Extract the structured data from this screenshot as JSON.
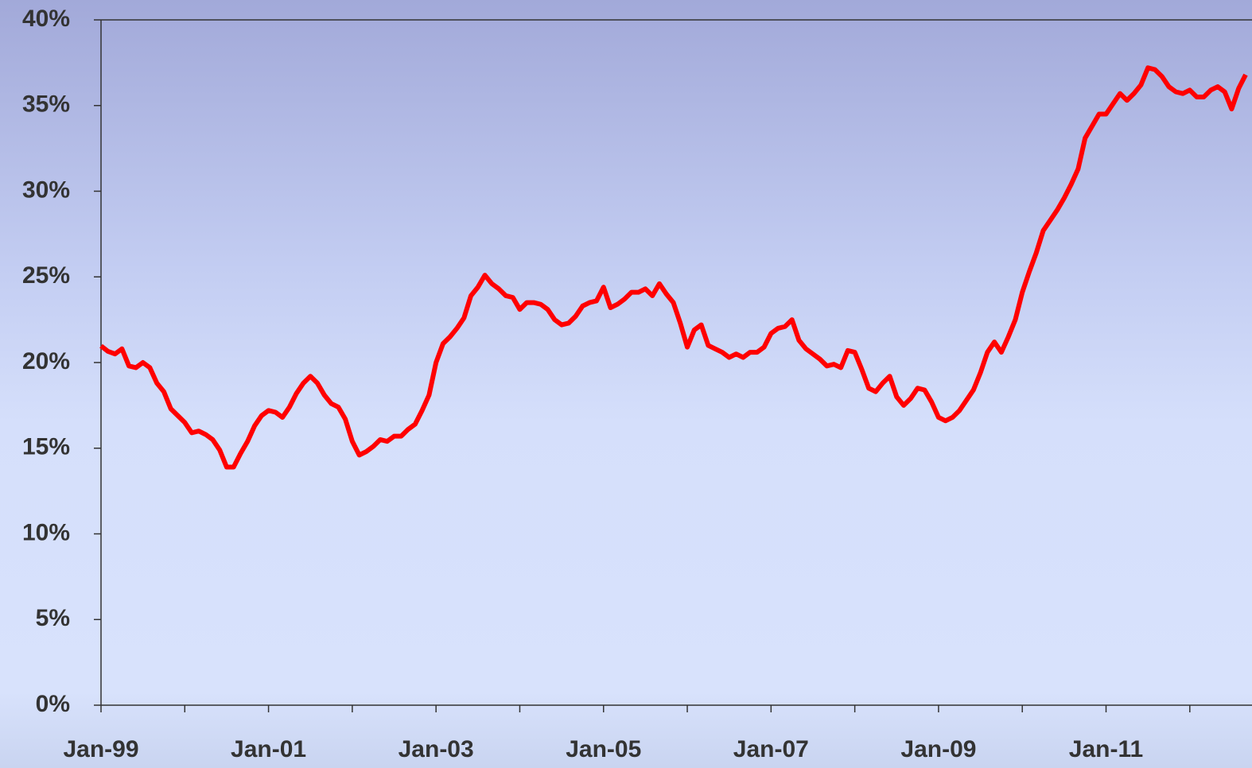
{
  "chart_data": {
    "type": "line",
    "categories": [
      "Jan-99",
      null,
      null,
      null,
      null,
      null,
      null,
      null,
      null,
      null,
      null,
      null,
      null,
      null,
      null,
      null,
      null,
      null,
      null,
      null,
      null,
      null,
      null,
      null,
      "Jan-01",
      null,
      null,
      null,
      null,
      null,
      null,
      null,
      null,
      null,
      null,
      null,
      null,
      null,
      null,
      null,
      null,
      null,
      null,
      null,
      null,
      null,
      null,
      null,
      "Jan-03",
      null,
      null,
      null,
      null,
      null,
      null,
      null,
      null,
      null,
      null,
      null,
      null,
      null,
      null,
      null,
      null,
      null,
      null,
      null,
      null,
      null,
      null,
      null,
      "Jan-05",
      null,
      null,
      null,
      null,
      null,
      null,
      null,
      null,
      null,
      null,
      null,
      null,
      null,
      null,
      null,
      null,
      null,
      null,
      null,
      null,
      null,
      null,
      null,
      "Jan-07",
      null,
      null,
      null,
      null,
      null,
      null,
      null,
      null,
      null,
      null,
      null,
      null,
      null,
      null,
      null,
      null,
      null,
      null,
      null,
      null,
      null,
      null,
      null,
      "Jan-09",
      null,
      null,
      null,
      null,
      null,
      null,
      null,
      null,
      null,
      null,
      null,
      null,
      null,
      null,
      null,
      null,
      null,
      null,
      null,
      null,
      null,
      null,
      null,
      "Jan-11",
      null,
      null,
      null,
      null,
      null,
      null,
      null,
      null,
      null,
      null,
      null,
      null,
      null,
      null,
      null,
      null,
      null,
      null,
      null,
      null
    ],
    "series": [
      {
        "color": "#ff0000",
        "values": [
          20.97,
          20.65,
          20.5,
          20.8,
          19.8,
          19.7,
          20.0,
          19.7,
          18.8,
          18.3,
          17.3,
          16.9,
          16.5,
          15.9,
          16.0,
          15.8,
          15.5,
          14.9,
          13.9,
          13.9,
          14.7,
          15.4,
          16.3,
          16.9,
          17.2,
          17.1,
          16.8,
          17.4,
          18.2,
          18.8,
          19.2,
          18.8,
          18.1,
          17.6,
          17.4,
          16.7,
          15.4,
          14.6,
          14.8,
          15.1,
          15.5,
          15.4,
          15.7,
          15.7,
          16.1,
          16.4,
          17.2,
          18.1,
          20.0,
          21.1,
          21.5,
          22.0,
          22.6,
          23.9,
          24.4,
          25.1,
          24.6,
          24.3,
          23.9,
          23.8,
          23.1,
          23.5,
          23.5,
          23.4,
          23.1,
          22.5,
          22.2,
          22.3,
          22.7,
          23.3,
          23.5,
          23.6,
          24.4,
          23.2,
          23.4,
          23.7,
          24.1,
          24.1,
          24.3,
          23.9,
          24.6,
          24.0,
          23.5,
          22.3,
          20.9,
          21.9,
          22.2,
          21.0,
          20.8,
          20.6,
          20.3,
          20.5,
          20.3,
          20.6,
          20.6,
          20.9,
          21.7,
          22.0,
          22.1,
          22.5,
          21.3,
          20.8,
          20.5,
          20.2,
          19.8,
          19.9,
          19.7,
          20.7,
          20.6,
          19.6,
          18.5,
          18.3,
          18.8,
          19.2,
          18.0,
          17.5,
          17.9,
          18.5,
          18.4,
          17.7,
          16.8,
          16.6,
          16.8,
          17.2,
          17.8,
          18.4,
          19.4,
          20.6,
          21.2,
          20.6,
          21.5,
          22.5,
          24.1,
          25.3,
          26.4,
          27.7,
          28.3,
          28.9,
          29.6,
          30.4,
          31.3,
          33.1,
          33.8,
          34.5,
          34.5,
          35.1,
          35.7,
          35.3,
          35.7,
          36.2,
          37.2,
          37.1,
          36.7,
          36.1,
          35.8,
          35.7,
          35.9,
          35.5,
          35.5,
          35.9,
          36.1,
          35.8,
          34.8,
          36.0,
          36.8
        ]
      }
    ],
    "ylim": [
      0,
      40
    ],
    "yticks": [
      {
        "value": 0,
        "label": "0%"
      },
      {
        "value": 5,
        "label": "5%"
      },
      {
        "value": 10,
        "label": "10%"
      },
      {
        "value": 15,
        "label": "15%"
      },
      {
        "value": 20,
        "label": "20%"
      },
      {
        "value": 25,
        "label": "25%"
      },
      {
        "value": 30,
        "label": "30%"
      },
      {
        "value": 35,
        "label": "35%"
      },
      {
        "value": 40,
        "label": "40%"
      }
    ],
    "grid": false
  }
}
